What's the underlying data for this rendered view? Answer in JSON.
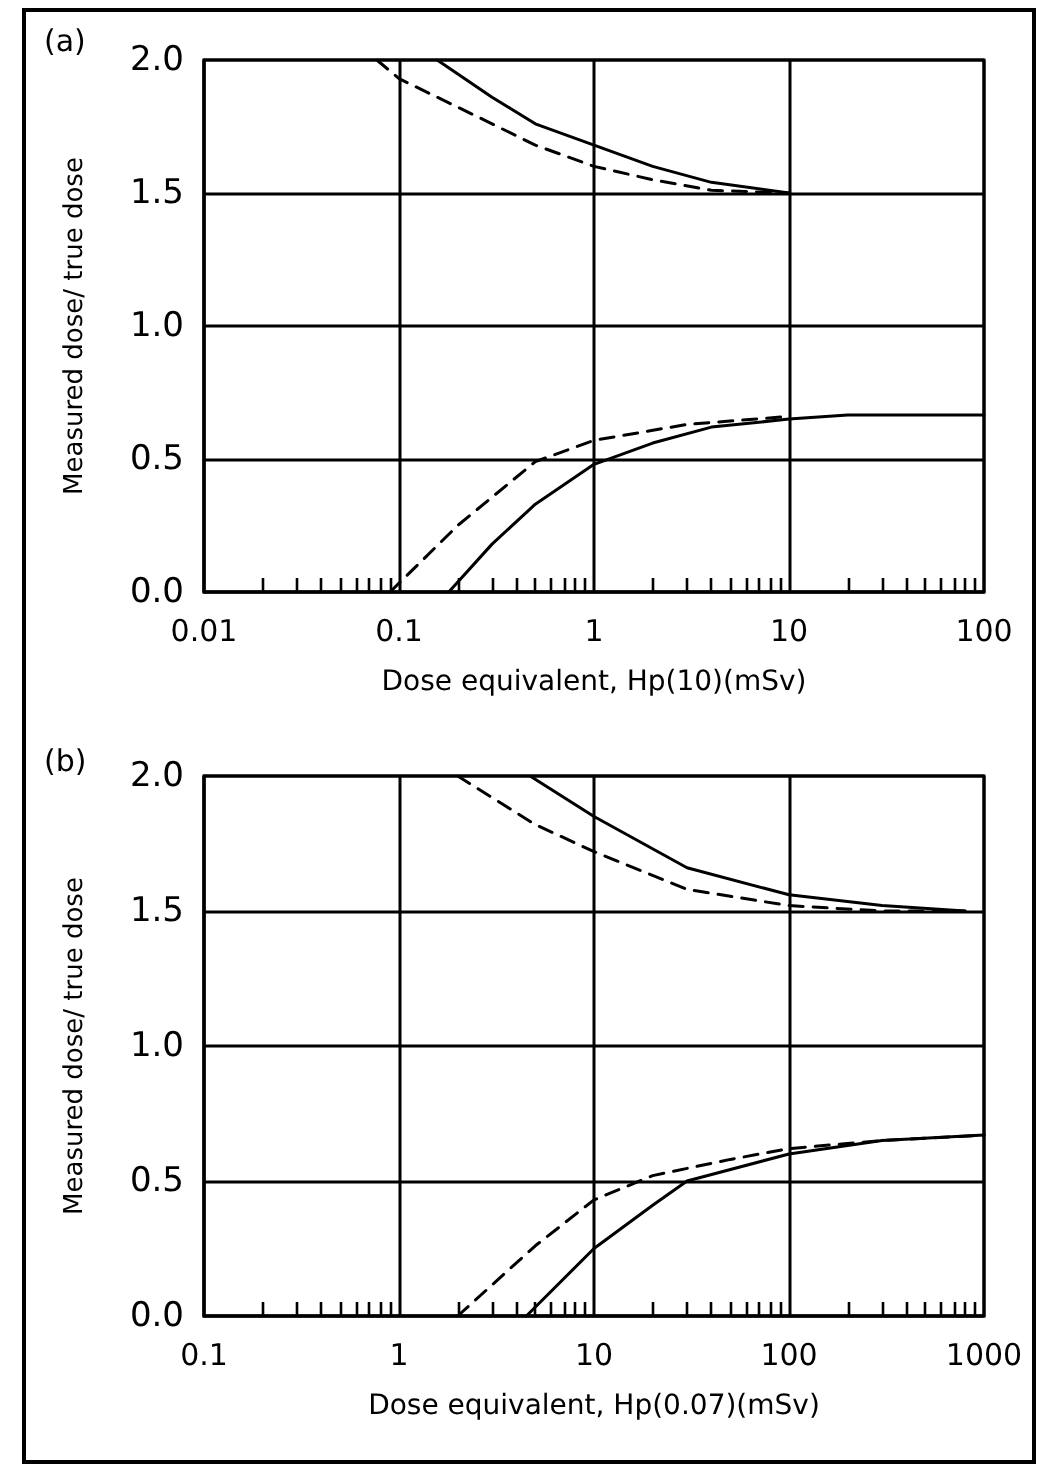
{
  "chart_data": [
    {
      "type": "line",
      "title": "(a)",
      "xlabel": "Dose equivalent, Hp(10)(mSv)",
      "ylabel": "Measured dose/ true dose",
      "log": "x",
      "grid": true,
      "xlim": [
        0.01,
        100
      ],
      "ylim": [
        0,
        2
      ],
      "xticks": [
        0.01,
        0.1,
        1,
        10,
        100,
        {
          "value": 0.02,
          "label": null
        },
        {
          "value": 0.03,
          "label": null
        },
        {
          "value": 0.04,
          "label": null
        },
        {
          "value": 0.05,
          "label": null
        },
        {
          "value": 0.06,
          "label": null
        },
        {
          "value": 0.07,
          "label": null
        },
        {
          "value": 0.08,
          "label": null
        },
        {
          "value": 0.09,
          "label": null
        },
        {
          "value": 0.2,
          "label": null
        },
        {
          "value": 0.3,
          "label": null
        },
        {
          "value": 0.4,
          "label": null
        },
        {
          "value": 0.5,
          "label": null
        },
        {
          "value": 0.6,
          "label": null
        },
        {
          "value": 0.7,
          "label": null
        },
        {
          "value": 0.8,
          "label": null
        },
        {
          "value": 0.9,
          "label": null
        },
        {
          "value": 2,
          "label": null
        },
        {
          "value": 3,
          "label": null
        },
        {
          "value": 4,
          "label": null
        },
        {
          "value": 5,
          "label": null
        },
        {
          "value": 6,
          "label": null
        },
        {
          "value": 7,
          "label": null
        },
        {
          "value": 8,
          "label": null
        },
        {
          "value": 9,
          "label": null
        },
        {
          "value": 20,
          "label": null
        },
        {
          "value": 30,
          "label": null
        },
        {
          "value": 40,
          "label": null
        },
        {
          "value": 50,
          "label": null
        },
        {
          "value": 60,
          "label": null
        },
        {
          "value": 70,
          "label": null
        },
        {
          "value": 80,
          "label": null
        },
        {
          "value": 90,
          "label": null
        }
      ],
      "yticks": [
        {
          "value": 0,
          "label": "0.0"
        },
        {
          "value": 0.5,
          "label": "0.5"
        },
        {
          "value": 1,
          "label": "1.0"
        },
        {
          "value": 1.5,
          "label": "1.5"
        },
        {
          "value": 2,
          "label": "2.0"
        }
      ],
      "series": [
        {
          "color": "#000000",
          "line_style": "solid",
          "x": [
            0.157,
            0.3,
            0.5,
            1,
            2,
            4,
            10
          ],
          "values": [
            2.0,
            1.86,
            1.76,
            1.68,
            1.6,
            1.54,
            1.5
          ]
        },
        {
          "color": "#000000",
          "line_style": "dashed",
          "x": [
            0.077,
            0.1,
            0.3,
            0.5,
            1,
            2,
            4,
            10
          ],
          "values": [
            2.0,
            1.93,
            1.76,
            1.68,
            1.6,
            1.55,
            1.51,
            1.5
          ]
        },
        {
          "color": "#000000",
          "line_style": "solid",
          "x": [
            0.18,
            0.3,
            0.5,
            1,
            2,
            4,
            10,
            20,
            100
          ],
          "values": [
            0,
            0.18,
            0.33,
            0.48,
            0.56,
            0.62,
            0.65,
            0.665,
            0.665
          ]
        },
        {
          "color": "#000000",
          "line_style": "dashed",
          "x": [
            0.09,
            0.2,
            0.5,
            1,
            3,
            10
          ],
          "values": [
            0,
            0.25,
            0.49,
            0.57,
            0.63,
            0.66
          ]
        }
      ]
    },
    {
      "type": "line",
      "title": "(b)",
      "xlabel": "Dose equivalent, Hp(0.07)(mSv)",
      "ylabel": "Measured dose/ true dose",
      "log": "x",
      "grid": true,
      "xlim": [
        0.1,
        1000
      ],
      "ylim": [
        0,
        2
      ],
      "xticks": [
        0.1,
        1,
        10,
        100,
        1000,
        {
          "value": 0.2,
          "label": null
        },
        {
          "value": 0.3,
          "label": null
        },
        {
          "value": 0.4,
          "label": null
        },
        {
          "value": 0.5,
          "label": null
        },
        {
          "value": 0.6,
          "label": null
        },
        {
          "value": 0.7,
          "label": null
        },
        {
          "value": 0.8,
          "label": null
        },
        {
          "value": 0.9,
          "label": null
        },
        {
          "value": 2,
          "label": null
        },
        {
          "value": 3,
          "label": null
        },
        {
          "value": 4,
          "label": null
        },
        {
          "value": 5,
          "label": null
        },
        {
          "value": 6,
          "label": null
        },
        {
          "value": 7,
          "label": null
        },
        {
          "value": 8,
          "label": null
        },
        {
          "value": 9,
          "label": null
        },
        {
          "value": 20,
          "label": null
        },
        {
          "value": 30,
          "label": null
        },
        {
          "value": 40,
          "label": null
        },
        {
          "value": 50,
          "label": null
        },
        {
          "value": 60,
          "label": null
        },
        {
          "value": 70,
          "label": null
        },
        {
          "value": 80,
          "label": null
        },
        {
          "value": 90,
          "label": null
        },
        {
          "value": 200,
          "label": null
        },
        {
          "value": 300,
          "label": null
        },
        {
          "value": 400,
          "label": null
        },
        {
          "value": 500,
          "label": null
        },
        {
          "value": 600,
          "label": null
        },
        {
          "value": 700,
          "label": null
        },
        {
          "value": 800,
          "label": null
        },
        {
          "value": 900,
          "label": null
        }
      ],
      "yticks": [
        {
          "value": 0,
          "label": "0.0"
        },
        {
          "value": 0.5,
          "label": "0.5"
        },
        {
          "value": 1,
          "label": "1.0"
        },
        {
          "value": 1.5,
          "label": "1.5"
        },
        {
          "value": 2,
          "label": "2.0"
        }
      ],
      "series": [
        {
          "color": "#000000",
          "line_style": "solid",
          "x": [
            4.7,
            10,
            30,
            100,
            300,
            800
          ],
          "values": [
            2.0,
            1.85,
            1.66,
            1.56,
            1.52,
            1.5
          ]
        },
        {
          "color": "#000000",
          "line_style": "dashed",
          "x": [
            2,
            5,
            10,
            30,
            100,
            300,
            800
          ],
          "values": [
            2.0,
            1.82,
            1.72,
            1.58,
            1.52,
            1.5,
            1.5
          ]
        },
        {
          "color": "#000000",
          "line_style": "solid",
          "x": [
            4.5,
            10,
            20,
            30,
            100,
            300,
            1000
          ],
          "values": [
            0,
            0.25,
            0.41,
            0.5,
            0.6,
            0.65,
            0.67
          ]
        },
        {
          "color": "#000000",
          "line_style": "dashed",
          "x": [
            2,
            5,
            10,
            20,
            50,
            100,
            300,
            1000
          ],
          "values": [
            0,
            0.26,
            0.43,
            0.52,
            0.58,
            0.62,
            0.65,
            0.67
          ]
        }
      ]
    }
  ]
}
